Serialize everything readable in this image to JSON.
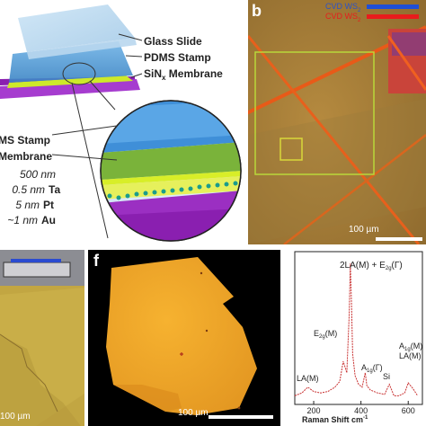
{
  "panel_a": {
    "labels": {
      "glass_slide": "Glass Slide",
      "pdms_stamp": "PDMS Stamp",
      "sinx_membrane_main": "SiN",
      "sinx_sub": "x",
      "sinx_membrane_tail": " Membrane",
      "zoom_stamp": "MS Stamp",
      "zoom_membrane": "Membrane"
    },
    "layers": [
      {
        "thickness": "500 nm",
        "material": ""
      },
      {
        "thickness": "0.5 nm",
        "material": "Ta"
      },
      {
        "thickness": "5 nm",
        "material": "Pt"
      },
      {
        "thickness": "~1 nm",
        "material": "Au"
      }
    ]
  },
  "panel_b": {
    "letter": "b",
    "legend": [
      {
        "label": "CVD WS",
        "sub": "2",
        "color": "#1f4fd6"
      },
      {
        "label": "CVD WS",
        "sub": "2",
        "color": "#e81c1c"
      }
    ],
    "scalebar": "100 µm"
  },
  "panel_e": {
    "scalebar": "100 µm"
  },
  "panel_f": {
    "letter": "f",
    "scalebar": "100 µm"
  },
  "panel_g": {
    "x_axis_label": "Raman Shift cm",
    "x_axis_sup": "-1",
    "x_ticks": [
      "200",
      "400",
      "600"
    ],
    "peaks": [
      {
        "label": "2LA(M) + E",
        "sub": "2g",
        "tail": "(Γ)"
      },
      {
        "label": "E",
        "sub": "2g",
        "tail": "(M)"
      },
      {
        "label": "A",
        "sub": "1g",
        "tail": "(Γ)"
      },
      {
        "label": "LA(M)",
        "sub": "",
        "tail": ""
      },
      {
        "label": "Si",
        "sub": "",
        "tail": ""
      },
      {
        "label": "A",
        "sub": "1g",
        "tail": "(M)"
      },
      {
        "label": "LA(M)",
        "sub": "",
        "tail": ""
      }
    ],
    "chart_data": {
      "type": "line",
      "x": [
        120,
        150,
        175,
        200,
        230,
        260,
        290,
        310,
        325,
        340,
        350,
        355,
        360,
        365,
        375,
        390,
        405,
        418,
        425,
        440,
        470,
        500,
        520,
        540,
        560,
        585,
        600,
        620,
        640
      ],
      "y": [
        0.06,
        0.08,
        0.12,
        0.09,
        0.08,
        0.09,
        0.12,
        0.16,
        0.3,
        0.22,
        0.62,
        0.98,
        0.7,
        0.35,
        0.2,
        0.14,
        0.12,
        0.22,
        0.13,
        0.1,
        0.08,
        0.07,
        0.14,
        0.06,
        0.06,
        0.08,
        0.15,
        0.11,
        0.06
      ],
      "xlabel": "Raman Shift cm-1",
      "xlim": [
        120,
        660
      ],
      "ylim": [
        0,
        1.05
      ]
    }
  }
}
